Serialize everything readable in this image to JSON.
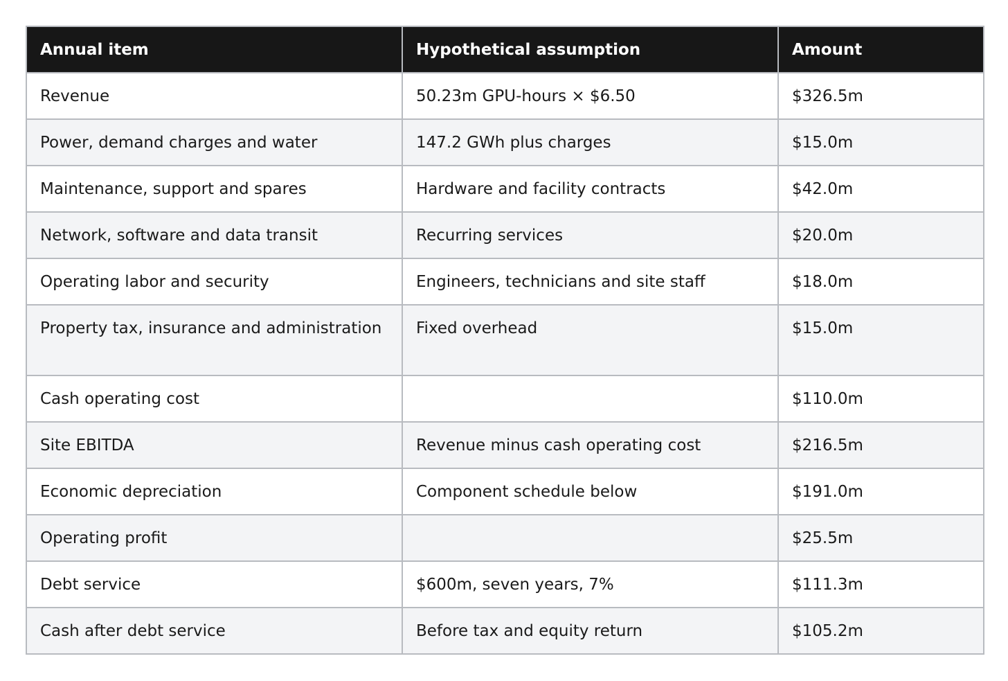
{
  "table": {
    "headers": [
      "Annual item",
      "Hypothetical assumption",
      "Amount"
    ],
    "rows": [
      [
        "Revenue",
        "50.23m GPU-hours × $6.50",
        "$326.5m"
      ],
      [
        "Power, demand charges and water",
        "147.2 GWh plus charges",
        "$15.0m"
      ],
      [
        "Maintenance, support and spares",
        "Hardware and facility contracts",
        "$42.0m"
      ],
      [
        "Network, software and data transit",
        "Recurring services",
        "$20.0m"
      ],
      [
        "Operating labor and security",
        "Engineers, technicians and site staff",
        "$18.0m"
      ],
      [
        "Property tax, insurance and administration",
        "Fixed overhead",
        "$15.0m"
      ],
      [
        "Cash operating cost",
        "",
        "$110.0m"
      ],
      [
        "Site EBITDA",
        "Revenue minus cash operating cost",
        "$216.5m"
      ],
      [
        "Economic depreciation",
        "Component schedule below",
        "$191.0m"
      ],
      [
        "Operating profit",
        "",
        "$25.5m"
      ],
      [
        "Debt service",
        "$600m, seven years, 7%",
        "$111.3m"
      ],
      [
        "Cash after debt service",
        "Before tax and equity return",
        "$105.2m"
      ]
    ]
  }
}
